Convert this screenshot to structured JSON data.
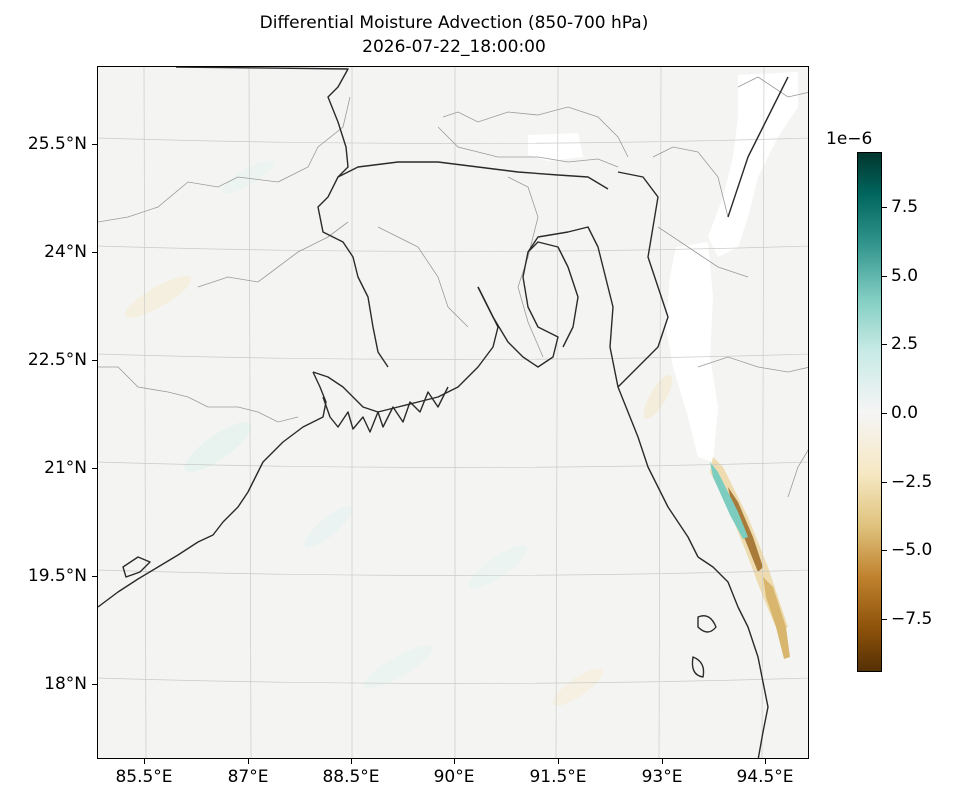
{
  "title": {
    "line1": "Differential Moisture Advection (850-700 hPa)",
    "line2": "2026-07-22_18:00:00"
  },
  "map": {
    "projection": "lat-lon",
    "lon_range": [
      84.8,
      95.3
    ],
    "lat_range": [
      17.0,
      26.6
    ],
    "lat_ticks": [
      "25.5°N",
      "24°N",
      "22.5°N",
      "21°N",
      "19.5°N",
      "18°N"
    ],
    "lon_ticks": [
      "85.5°E",
      "87°E",
      "88.5°E",
      "90°E",
      "91.5°E",
      "93°E",
      "94.5°E"
    ],
    "gridlines": true,
    "features": [
      "coastlines",
      "country borders",
      "state borders"
    ]
  },
  "colorbar": {
    "colormap": "BrBG",
    "exponent_label": "1e−6",
    "ticks": [
      "7.5",
      "5.0",
      "2.5",
      "0.0",
      "−2.5",
      "−5.0",
      "−7.5"
    ],
    "range": [
      -9.4,
      9.4
    ],
    "colors": {
      "max": "#01362e",
      "mid": "#f5f5f5",
      "min": "#543005"
    }
  }
}
